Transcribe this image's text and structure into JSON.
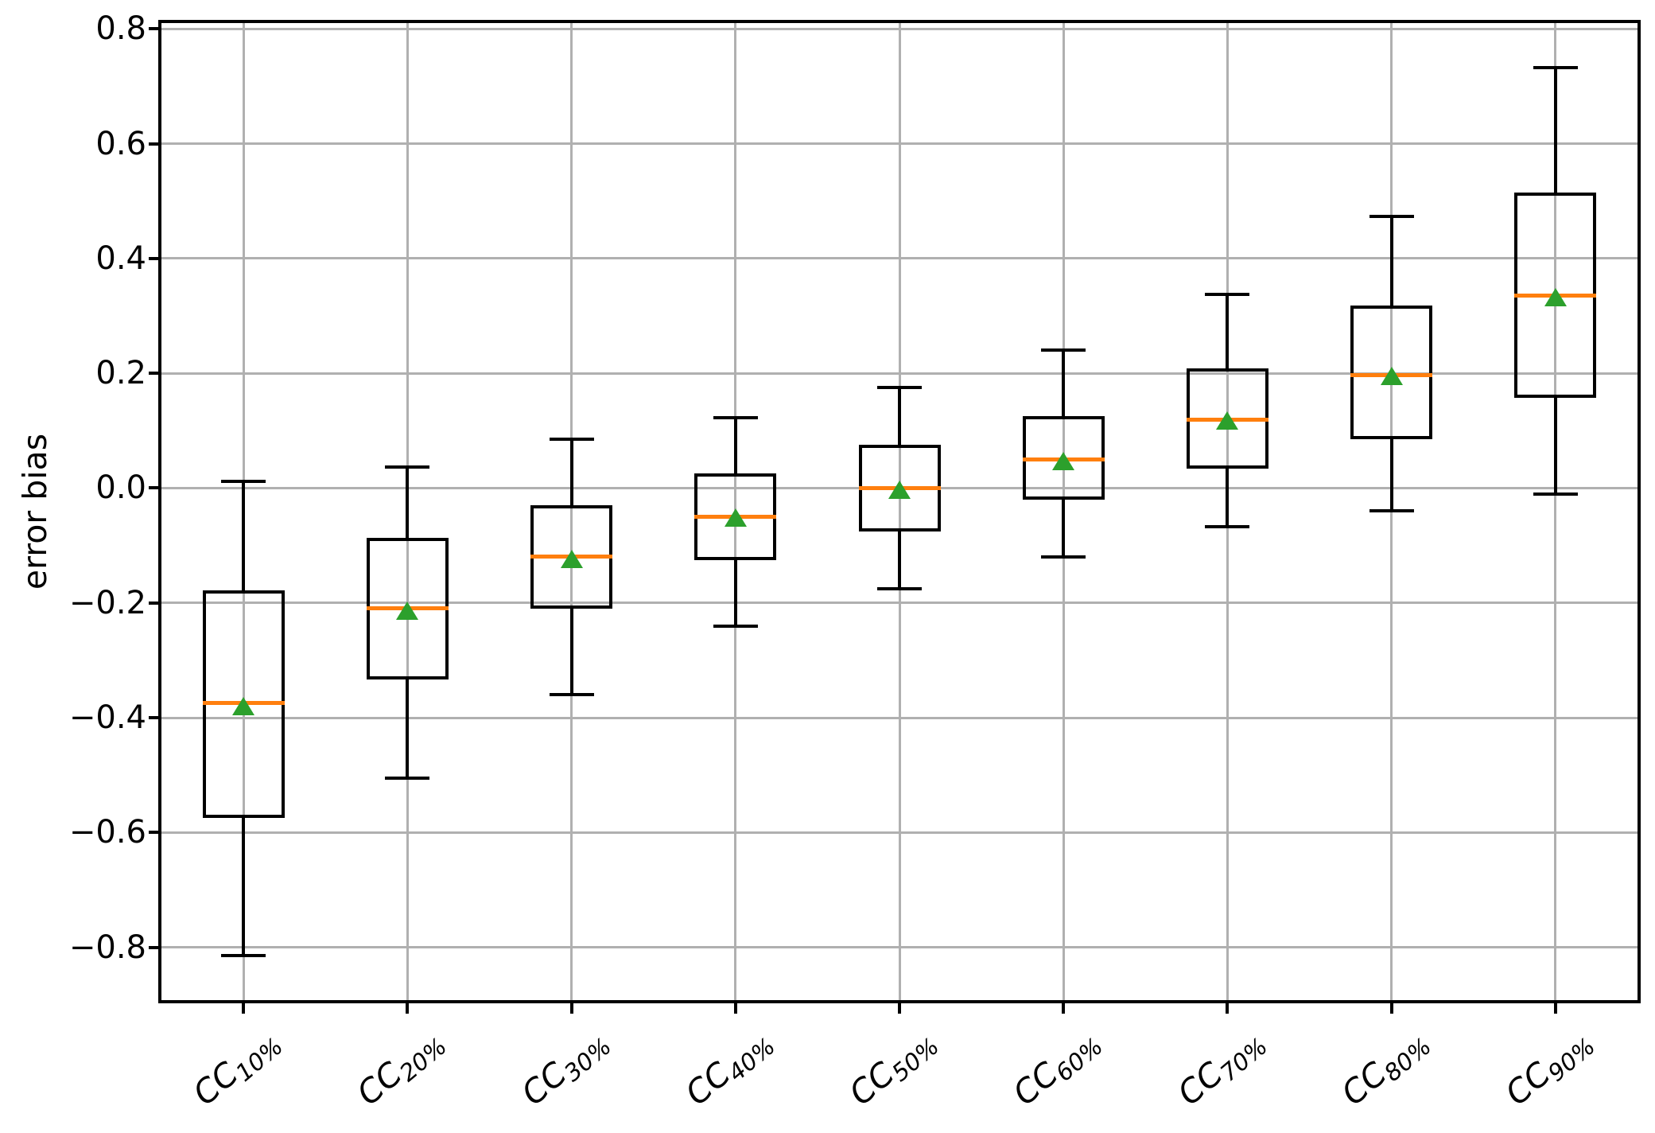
{
  "chart_data": {
    "type": "boxplot",
    "title": "",
    "xlabel": "",
    "ylabel": "error bias",
    "ylim": [
      -0.892,
      0.81
    ],
    "yticks": [
      0.8,
      0.6,
      0.4,
      0.2,
      0.0,
      -0.2,
      -0.4,
      -0.6,
      -0.8
    ],
    "grid": true,
    "legend": null,
    "categories": [
      "CC10%",
      "CC20%",
      "CC30%",
      "CC40%",
      "CC50%",
      "CC60%",
      "CC70%",
      "CC80%",
      "CC90%"
    ],
    "category_labels": [
      {
        "base": "CC",
        "sub": "10%"
      },
      {
        "base": "CC",
        "sub": "20%"
      },
      {
        "base": "CC",
        "sub": "30%"
      },
      {
        "base": "CC",
        "sub": "40%"
      },
      {
        "base": "CC",
        "sub": "50%"
      },
      {
        "base": "CC",
        "sub": "60%"
      },
      {
        "base": "CC",
        "sub": "70%"
      },
      {
        "base": "CC",
        "sub": "80%"
      },
      {
        "base": "CC",
        "sub": "90%"
      }
    ],
    "series": [
      {
        "label": "CC10%",
        "whislo": -0.815,
        "q1": -0.575,
        "med": -0.375,
        "mean": -0.38,
        "q3": -0.178,
        "whishi": 0.012
      },
      {
        "label": "CC20%",
        "whislo": -0.505,
        "q1": -0.333,
        "med": -0.21,
        "mean": -0.213,
        "q3": -0.087,
        "whishi": 0.037
      },
      {
        "label": "CC30%",
        "whislo": -0.36,
        "q1": -0.21,
        "med": -0.12,
        "mean": -0.123,
        "q3": -0.03,
        "whishi": 0.085
      },
      {
        "label": "CC40%",
        "whislo": -0.24,
        "q1": -0.125,
        "med": -0.05,
        "mean": -0.052,
        "q3": 0.025,
        "whishi": 0.122
      },
      {
        "label": "CC50%",
        "whislo": -0.175,
        "q1": -0.075,
        "med": 0.0,
        "mean": -0.003,
        "q3": 0.075,
        "whishi": 0.175
      },
      {
        "label": "CC60%",
        "whislo": -0.12,
        "q1": -0.02,
        "med": 0.05,
        "mean": 0.047,
        "q3": 0.125,
        "whishi": 0.24
      },
      {
        "label": "CC70%",
        "whislo": -0.068,
        "q1": 0.034,
        "med": 0.119,
        "mean": 0.118,
        "q3": 0.208,
        "whishi": 0.337
      },
      {
        "label": "CC80%",
        "whislo": -0.04,
        "q1": 0.085,
        "med": 0.197,
        "mean": 0.195,
        "q3": 0.318,
        "whishi": 0.473
      },
      {
        "label": "CC90%",
        "whislo": -0.01,
        "q1": 0.157,
        "med": 0.335,
        "mean": 0.332,
        "q3": 0.515,
        "whishi": 0.733
      }
    ]
  },
  "styles": {
    "median_color": "#ff7f0e",
    "mean_marker_color": "#2ca02c",
    "box_line_color": "#000000",
    "grid_color": "#b0b0b0",
    "background_color": "#ffffff"
  }
}
